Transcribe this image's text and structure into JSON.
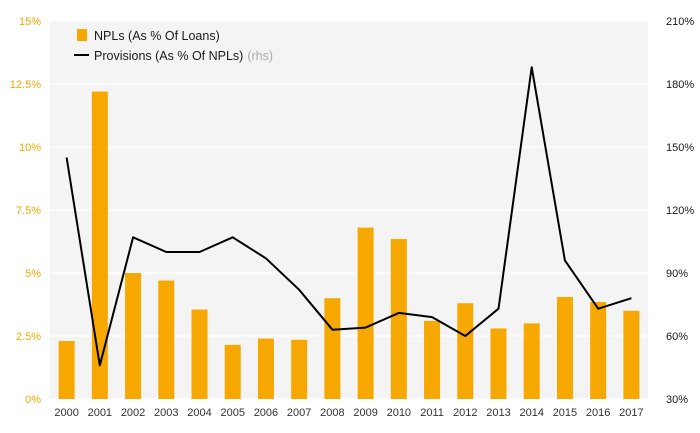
{
  "chart_data": {
    "type": "bar",
    "title": "",
    "xlabel": "",
    "ylabel": "",
    "categories": [
      "2000",
      "2001",
      "2002",
      "2003",
      "2004",
      "2005",
      "2006",
      "2007",
      "2008",
      "2009",
      "2010",
      "2011",
      "2012",
      "2013",
      "2014",
      "2015",
      "2016",
      "2017"
    ],
    "series": [
      {
        "name": "NPLs (As % Of Loans)",
        "type": "bar",
        "axis": "left",
        "values": [
          2.3,
          12.2,
          5.0,
          4.7,
          3.55,
          2.15,
          2.4,
          2.35,
          4.0,
          6.8,
          6.35,
          3.1,
          3.8,
          2.8,
          3.0,
          4.05,
          3.85,
          3.5
        ]
      },
      {
        "name": "Provisions (As % Of NPLs)",
        "suffix": "(rhs)",
        "type": "line",
        "axis": "right",
        "values": [
          145,
          46,
          107,
          100,
          100,
          107,
          97,
          82,
          63,
          64,
          71,
          69,
          60,
          73,
          188,
          96,
          73,
          78
        ]
      }
    ],
    "ylim_left": [
      0,
      15
    ],
    "ylim_right": [
      30,
      210
    ],
    "left_ticks": [
      {
        "value": 0,
        "label": "0%"
      },
      {
        "value": 2.5,
        "label": "2.5%"
      },
      {
        "value": 5,
        "label": "5%"
      },
      {
        "value": 7.5,
        "label": "7.5%"
      },
      {
        "value": 10,
        "label": "10%"
      },
      {
        "value": 12.5,
        "label": "12.5%"
      },
      {
        "value": 15,
        "label": "15%"
      }
    ],
    "right_ticks": [
      {
        "value": 30,
        "label": "30%"
      },
      {
        "value": 60,
        "label": "60%"
      },
      {
        "value": 90,
        "label": "90%"
      },
      {
        "value": 120,
        "label": "120%"
      },
      {
        "value": 150,
        "label": "150%"
      },
      {
        "value": 180,
        "label": "180%"
      },
      {
        "value": 210,
        "label": "210%"
      }
    ],
    "legend": {
      "placement": "top-left",
      "bar_label": "NPLs (As % Of Loans)",
      "line_label": "Provisions (As % Of NPLs)",
      "line_suffix": "(rhs)"
    },
    "colors": {
      "bar": "#f6a800",
      "line": "#000000",
      "left_axis_text": "#f6a800",
      "right_axis_text": "#1a1a1a",
      "background": "#f4f4f4"
    }
  }
}
